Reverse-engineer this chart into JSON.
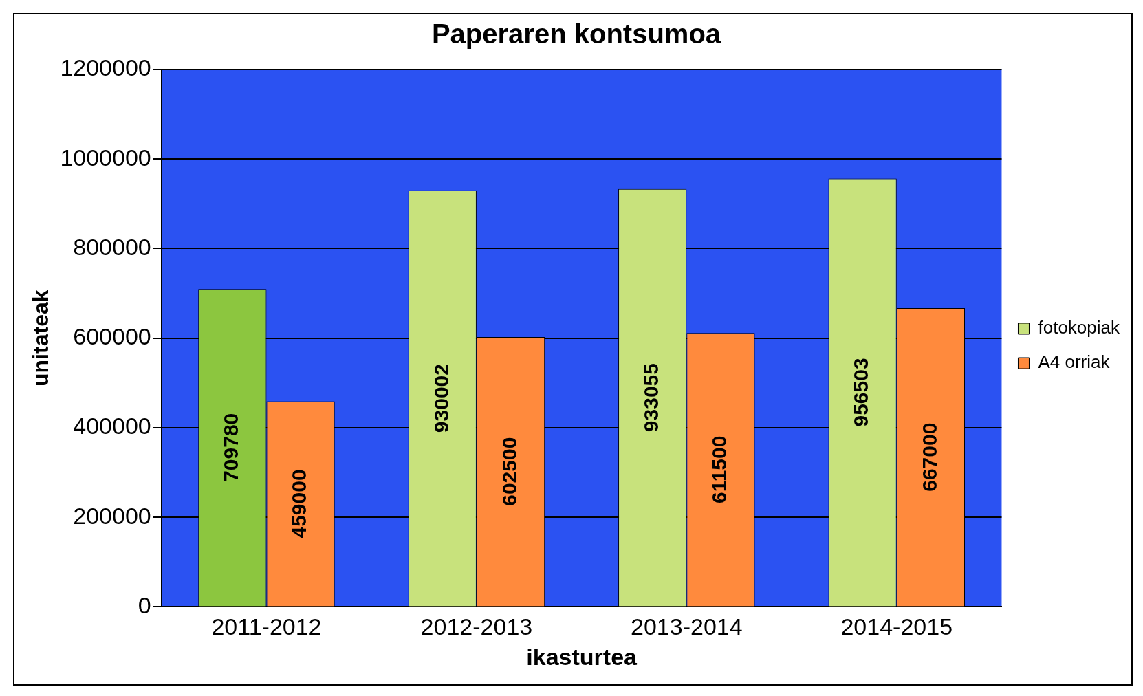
{
  "chart_data": {
    "type": "bar",
    "title": "Paperaren kontsumoa",
    "xlabel": "ikasturtea",
    "ylabel": "unitateak",
    "categories": [
      "2011-2012",
      "2012-2013",
      "2013-2014",
      "2014-2015"
    ],
    "series": [
      {
        "name": "fotokopiak",
        "color": "#c8e27c",
        "colors": [
          "#8cc63f",
          "#c8e27c",
          "#c8e27c",
          "#c8e27c"
        ],
        "values": [
          709780,
          930002,
          933055,
          956503
        ]
      },
      {
        "name": "A4 orriak",
        "color": "#ff8a3d",
        "values": [
          459000,
          602500,
          611500,
          667000
        ]
      }
    ],
    "ylim": [
      0,
      1200000
    ],
    "yticks": [
      0,
      200000,
      400000,
      600000,
      800000,
      1000000,
      1200000
    ],
    "grid": "y",
    "legend": "right",
    "data_labels": true
  }
}
